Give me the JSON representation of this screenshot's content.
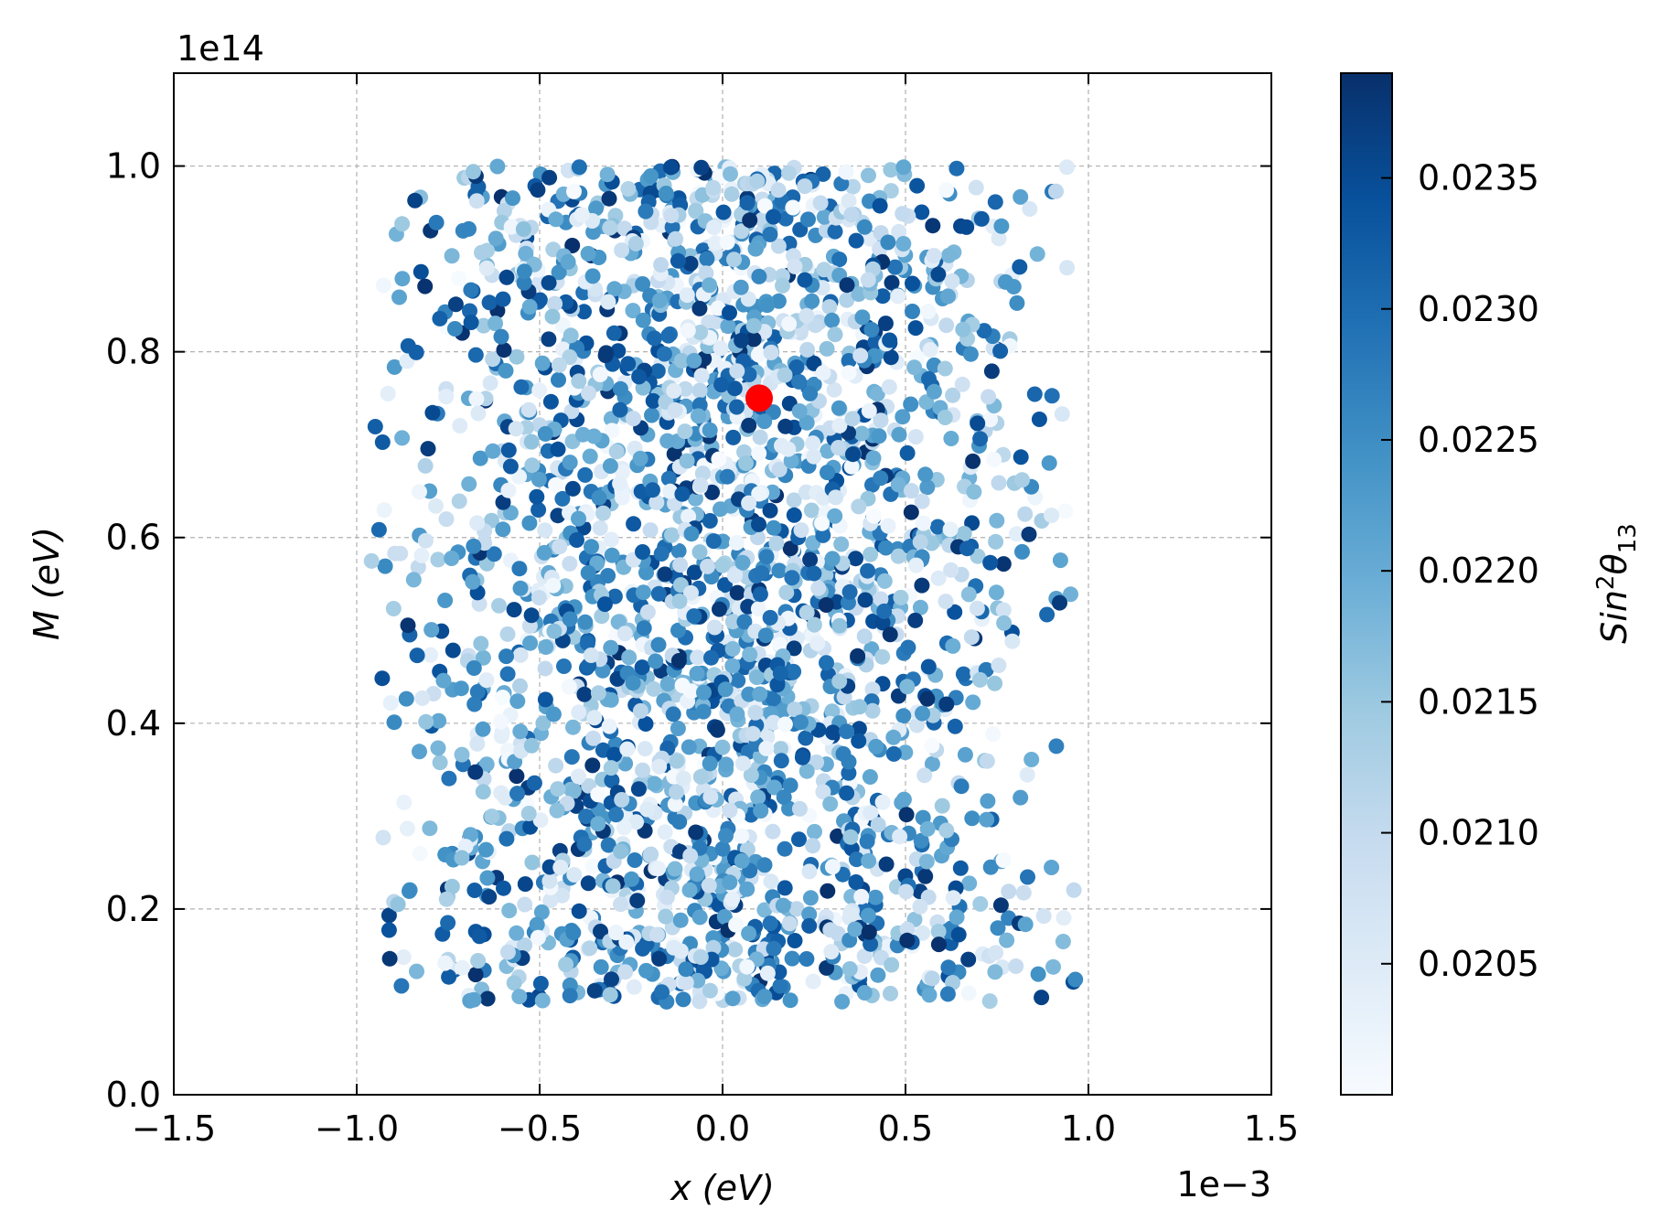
{
  "chart_data": {
    "type": "scatter",
    "title": "",
    "xlabel": "x (eV)",
    "ylabel": "M (eV)",
    "x_offset_label": "1e−3",
    "y_offset_label": "1e14",
    "xlim": [
      -1.5,
      1.5
    ],
    "ylim": [
      0.0,
      1.1
    ],
    "xticks": [
      -1.5,
      -1.0,
      -0.5,
      0.0,
      0.5,
      1.0,
      1.5
    ],
    "xtick_labels": [
      "−1.5",
      "−1.0",
      "−0.5",
      "0.0",
      "0.5",
      "1.0",
      "1.5"
    ],
    "yticks": [
      0.0,
      0.2,
      0.4,
      0.6,
      0.8,
      1.0
    ],
    "ytick_labels": [
      "0.0",
      "0.2",
      "0.4",
      "0.6",
      "0.8",
      "1.0"
    ],
    "grid": true,
    "colormap": "Blues",
    "colormap_stops": [
      "#f7fbff",
      "#deebf7",
      "#c6dbef",
      "#9ecae1",
      "#6baed6",
      "#4292c6",
      "#2171b5",
      "#08519c",
      "#08306b"
    ],
    "colorbar": {
      "label_base": "Sin",
      "label_sup": "2",
      "label_theta": "θ",
      "label_sub": "13",
      "range": [
        0.02,
        0.0239
      ],
      "ticks": [
        0.0205,
        0.021,
        0.0215,
        0.022,
        0.0225,
        0.023,
        0.0235
      ],
      "tick_labels": [
        "0.0205",
        "0.0210",
        "0.0215",
        "0.0220",
        "0.0225",
        "0.0230",
        "0.0235"
      ]
    },
    "scatter_spec": {
      "n_points": 2600,
      "x_range": [
        -1.0,
        1.0
      ],
      "y_range": [
        0.1,
        1.0
      ],
      "x_distribution": "denser near x = 0",
      "color_value_range": [
        0.02,
        0.0239
      ]
    },
    "highlight_point": {
      "x": 0.1,
      "y": 0.75,
      "color": "#ff0000"
    }
  }
}
